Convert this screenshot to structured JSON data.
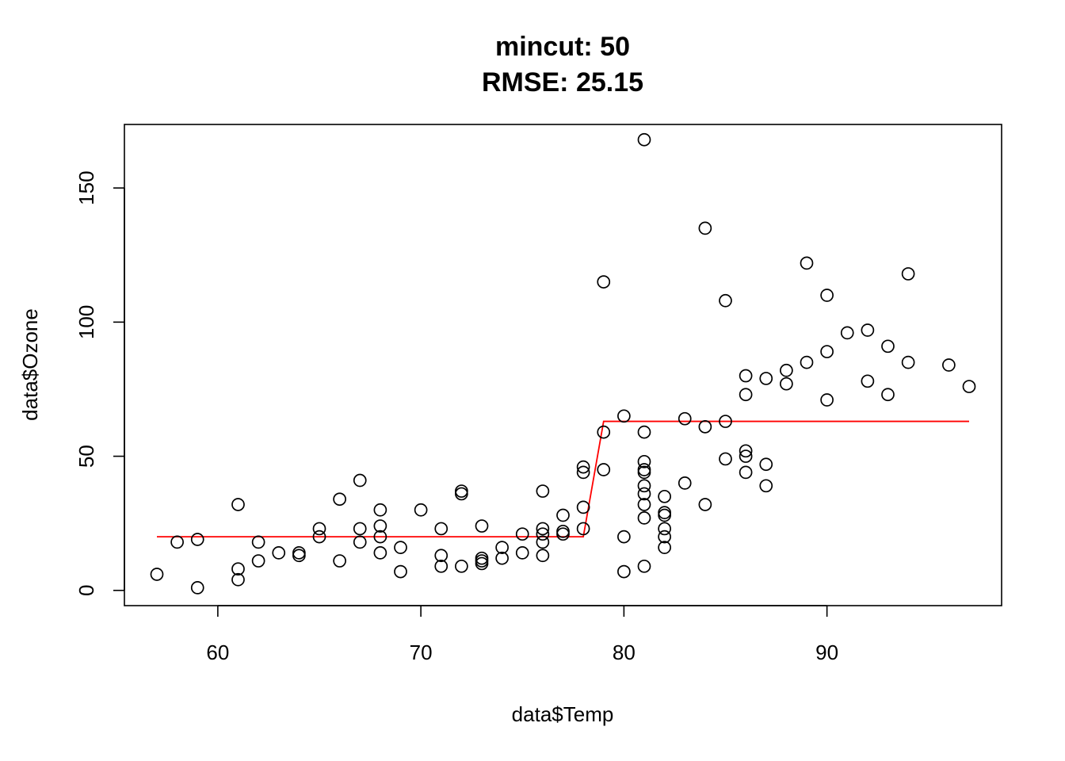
{
  "chart_data": {
    "type": "scatter",
    "title_lines": [
      "mincut: 50",
      "RMSE: 25.15"
    ],
    "xlabel": "data$Temp",
    "ylabel": "data$Ozone",
    "xlim": [
      55.4,
      98.6
    ],
    "ylim": [
      -5.68,
      173.68
    ],
    "x_ticks": [
      60,
      70,
      80,
      90
    ],
    "y_ticks": [
      0,
      50,
      100,
      150
    ],
    "grid": false,
    "point_color": "#000000",
    "line_color": "#ff0000",
    "points": [
      [
        57,
        6
      ],
      [
        58,
        18
      ],
      [
        59,
        19
      ],
      [
        59,
        1
      ],
      [
        61,
        32
      ],
      [
        61,
        8
      ],
      [
        61,
        4
      ],
      [
        62,
        18
      ],
      [
        62,
        11
      ],
      [
        63,
        14
      ],
      [
        64,
        14
      ],
      [
        64,
        13
      ],
      [
        65,
        23
      ],
      [
        65,
        20
      ],
      [
        66,
        34
      ],
      [
        66,
        11
      ],
      [
        67,
        41
      ],
      [
        67,
        23
      ],
      [
        67,
        18
      ],
      [
        68,
        30
      ],
      [
        68,
        24
      ],
      [
        68,
        20
      ],
      [
        68,
        14
      ],
      [
        69,
        16
      ],
      [
        69,
        7
      ],
      [
        70,
        30
      ],
      [
        71,
        23
      ],
      [
        71,
        13
      ],
      [
        71,
        9
      ],
      [
        72,
        37
      ],
      [
        72,
        36
      ],
      [
        72,
        9
      ],
      [
        73,
        24
      ],
      [
        73,
        12
      ],
      [
        73,
        11
      ],
      [
        73,
        10
      ],
      [
        74,
        16
      ],
      [
        74,
        12
      ],
      [
        75,
        21
      ],
      [
        75,
        14
      ],
      [
        76,
        37
      ],
      [
        76,
        23
      ],
      [
        76,
        21
      ],
      [
        76,
        18
      ],
      [
        76,
        13
      ],
      [
        77,
        28
      ],
      [
        77,
        22
      ],
      [
        77,
        21
      ],
      [
        78,
        46
      ],
      [
        78,
        44
      ],
      [
        78,
        31
      ],
      [
        78,
        23
      ],
      [
        79,
        115
      ],
      [
        79,
        59
      ],
      [
        79,
        45
      ],
      [
        80,
        65
      ],
      [
        80,
        20
      ],
      [
        80,
        7
      ],
      [
        81,
        168
      ],
      [
        81,
        59
      ],
      [
        81,
        48
      ],
      [
        81,
        45
      ],
      [
        81,
        44
      ],
      [
        81,
        39
      ],
      [
        81,
        36
      ],
      [
        81,
        32
      ],
      [
        81,
        27
      ],
      [
        81,
        9
      ],
      [
        82,
        35
      ],
      [
        82,
        29
      ],
      [
        82,
        28
      ],
      [
        82,
        23
      ],
      [
        82,
        20
      ],
      [
        82,
        16
      ],
      [
        83,
        64
      ],
      [
        83,
        40
      ],
      [
        84,
        135
      ],
      [
        84,
        61
      ],
      [
        84,
        32
      ],
      [
        85,
        108
      ],
      [
        85,
        63
      ],
      [
        85,
        49
      ],
      [
        86,
        80
      ],
      [
        86,
        73
      ],
      [
        86,
        52
      ],
      [
        86,
        50
      ],
      [
        86,
        44
      ],
      [
        87,
        79
      ],
      [
        87,
        47
      ],
      [
        87,
        39
      ],
      [
        88,
        82
      ],
      [
        88,
        77
      ],
      [
        89,
        122
      ],
      [
        89,
        85
      ],
      [
        90,
        110
      ],
      [
        90,
        89
      ],
      [
        90,
        71
      ],
      [
        91,
        96
      ],
      [
        92,
        97
      ],
      [
        92,
        78
      ],
      [
        93,
        91
      ],
      [
        93,
        73
      ],
      [
        94,
        118
      ],
      [
        94,
        85
      ],
      [
        96,
        84
      ],
      [
        97,
        76
      ]
    ],
    "fit_line": [
      [
        57,
        20
      ],
      [
        78,
        20
      ],
      [
        79,
        63
      ],
      [
        97,
        63
      ]
    ]
  }
}
